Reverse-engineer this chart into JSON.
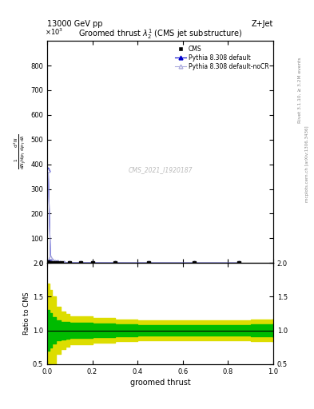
{
  "top_left_text": "13000 GeV pp",
  "top_right_text": "Z+Jet",
  "plot_title": "Groomed thrust $\\lambda_{2}^{1}$ (CMS jet substructure)",
  "xlabel": "groomed thrust",
  "ylabel_ratio": "Ratio to CMS",
  "watermark": "CMS_2021_I1920187",
  "rivet_text": "Rivet 3.1.10, ≥ 3.2M events",
  "mcplots_text": "mcplots.cern.ch [arXiv:1306.3436]",
  "xlim": [
    0.0,
    1.0
  ],
  "ylim_main": [
    0,
    0.9
  ],
  "ylim_ratio": [
    0.5,
    2.0
  ],
  "yticks_main": [
    0,
    0.1,
    0.2,
    0.3,
    0.4,
    0.5,
    0.6,
    0.7,
    0.8
  ],
  "ytick_main_labels": [
    "0",
    "100",
    "200",
    "300",
    "400",
    "500",
    "600",
    "700",
    "800"
  ],
  "yticks_ratio": [
    0.5,
    1.0,
    1.5,
    2.0
  ],
  "pythia_x": [
    0.005,
    0.015,
    0.025,
    0.035,
    0.045,
    0.055,
    0.075,
    0.1,
    0.15,
    0.2,
    0.3,
    0.45,
    0.65,
    0.85
  ],
  "pythia_y": [
    0.38,
    0.02,
    0.008,
    0.005,
    0.003,
    0.002,
    0.0015,
    0.001,
    0.0007,
    0.0005,
    0.0003,
    0.00015,
    7e-05,
    4e-05
  ],
  "pythia_nocr_x": [
    0.005,
    0.015,
    0.025,
    0.035,
    0.045,
    0.055,
    0.075,
    0.1,
    0.15,
    0.2,
    0.3,
    0.45,
    0.65,
    0.85
  ],
  "pythia_nocr_y": [
    0.375,
    0.022,
    0.009,
    0.0055,
    0.0032,
    0.0021,
    0.0016,
    0.0011,
    0.00075,
    0.00052,
    0.00032,
    0.00016,
    8e-05,
    4.5e-05
  ],
  "cms_x": [
    0.005,
    0.015,
    0.025,
    0.035,
    0.045,
    0.065,
    0.1,
    0.15,
    0.2,
    0.3,
    0.45,
    0.65,
    0.85
  ],
  "cms_y": [
    0.005,
    0.002,
    0.0015,
    0.001,
    0.0008,
    0.0005,
    0.0003,
    0.0002,
    0.00015,
    0.0001,
    5e-05,
    3e-05,
    2e-05
  ],
  "ratio_x": [
    0.0,
    0.01,
    0.02,
    0.04,
    0.06,
    0.08,
    0.1,
    0.2,
    0.3,
    0.4,
    0.5,
    0.6,
    0.7,
    0.8,
    0.9,
    1.0
  ],
  "ratio_green_upper": [
    1.3,
    1.25,
    1.2,
    1.15,
    1.13,
    1.12,
    1.11,
    1.1,
    1.09,
    1.08,
    1.08,
    1.08,
    1.08,
    1.08,
    1.09,
    1.1
  ],
  "ratio_green_lower": [
    0.7,
    0.75,
    0.8,
    0.85,
    0.87,
    0.88,
    0.89,
    0.9,
    0.91,
    0.92,
    0.92,
    0.92,
    0.92,
    0.92,
    0.91,
    0.9
  ],
  "ratio_yellow_upper": [
    1.7,
    1.6,
    1.5,
    1.35,
    1.28,
    1.24,
    1.21,
    1.18,
    1.16,
    1.15,
    1.15,
    1.15,
    1.15,
    1.15,
    1.16,
    1.17
  ],
  "ratio_yellow_lower": [
    0.3,
    0.4,
    0.5,
    0.65,
    0.72,
    0.76,
    0.79,
    0.82,
    0.84,
    0.85,
    0.85,
    0.85,
    0.85,
    0.85,
    0.84,
    0.83
  ],
  "color_cms": "#000000",
  "color_pythia": "#0000cc",
  "color_pythia_nocr": "#aaaadd",
  "color_green": "#00bb00",
  "color_yellow": "#dddd00",
  "bg_color": "#ffffff"
}
